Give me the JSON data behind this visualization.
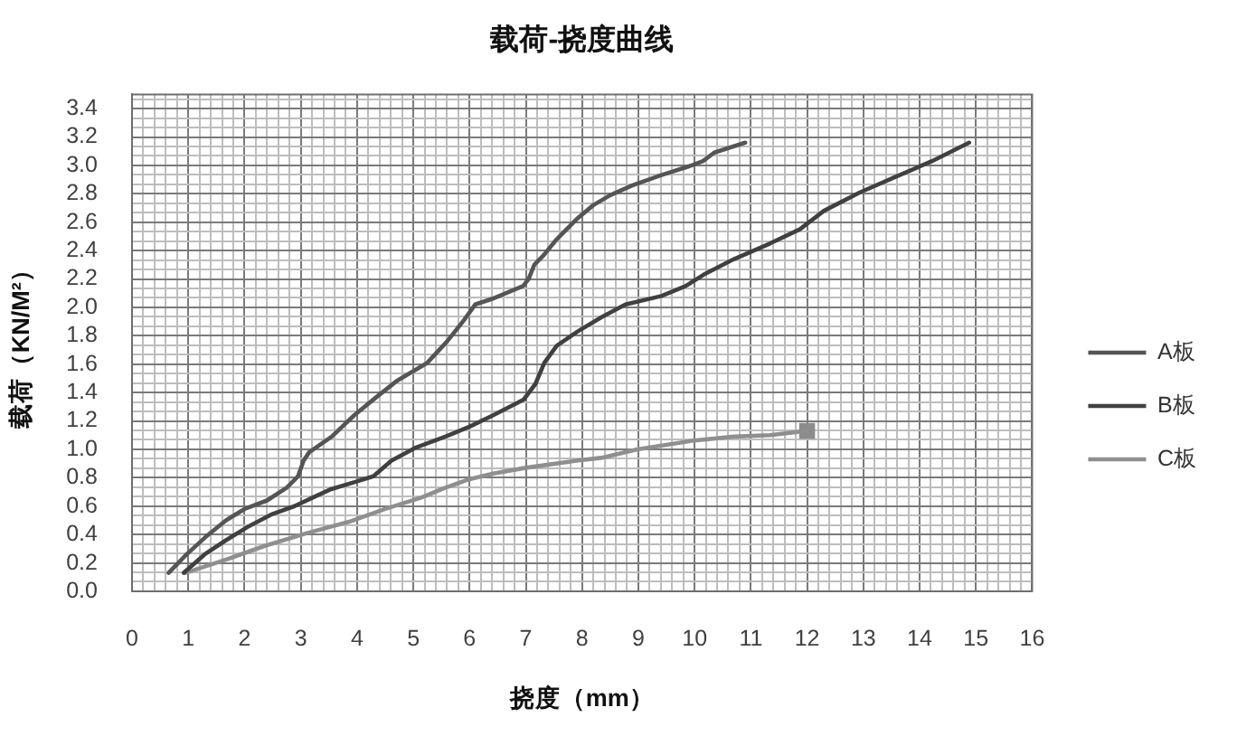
{
  "chart_data": {
    "type": "line",
    "title": "载荷-挠度曲线",
    "xlabel": "挠度（mm）",
    "ylabel": "载荷（KN/M²）",
    "series": [
      {
        "name": "A板",
        "color": "#555555",
        "x": [
          0.65,
          0.97,
          1.3,
          1.67,
          2.0,
          2.4,
          2.75,
          2.95,
          3.05,
          3.15,
          3.55,
          3.95,
          4.35,
          4.7,
          5.25,
          5.6,
          5.9,
          6.1,
          6.4,
          6.95,
          7.05,
          7.15,
          7.3,
          7.55,
          7.9,
          8.2,
          8.5,
          8.9,
          9.4,
          9.95,
          10.15,
          10.35,
          10.9
        ],
        "values": [
          0.13,
          0.26,
          0.38,
          0.5,
          0.58,
          0.64,
          0.73,
          0.81,
          0.92,
          0.98,
          1.09,
          1.24,
          1.37,
          1.48,
          1.61,
          1.76,
          1.91,
          2.02,
          2.06,
          2.15,
          2.2,
          2.3,
          2.36,
          2.48,
          2.62,
          2.72,
          2.79,
          2.86,
          2.93,
          3.0,
          3.03,
          3.09,
          3.16
        ]
      },
      {
        "name": "B板",
        "color": "#404040",
        "x": [
          0.92,
          1.29,
          1.67,
          2.04,
          2.47,
          2.89,
          3.21,
          3.54,
          3.96,
          4.29,
          4.61,
          5.03,
          5.57,
          6.0,
          6.42,
          6.96,
          7.17,
          7.33,
          7.55,
          7.92,
          8.34,
          8.77,
          9.41,
          9.84,
          10.16,
          10.7,
          11.34,
          11.87,
          12.3,
          12.94,
          13.58,
          14.22,
          14.88
        ],
        "values": [
          0.13,
          0.26,
          0.36,
          0.45,
          0.54,
          0.6,
          0.66,
          0.72,
          0.77,
          0.81,
          0.92,
          1.01,
          1.09,
          1.16,
          1.24,
          1.35,
          1.46,
          1.61,
          1.73,
          1.83,
          1.93,
          2.02,
          2.08,
          2.15,
          2.23,
          2.34,
          2.45,
          2.55,
          2.68,
          2.81,
          2.92,
          3.03,
          3.16
        ]
      },
      {
        "name": "C板",
        "color": "#8f8f8f",
        "x": [
          0.95,
          1.72,
          2.36,
          3.11,
          3.86,
          4.5,
          5.14,
          5.57,
          6.0,
          6.42,
          7.0,
          7.9,
          8.34,
          8.98,
          9.95,
          10.7,
          11.34,
          12.0
        ],
        "values": [
          0.13,
          0.23,
          0.32,
          0.41,
          0.49,
          0.58,
          0.66,
          0.73,
          0.79,
          0.83,
          0.87,
          0.92,
          0.94,
          1.0,
          1.06,
          1.09,
          1.1,
          1.13
        ]
      },
      {
        "type": "scatter",
        "color": "#8c8c8c",
        "marker": "square",
        "x": [
          12.0
        ],
        "values": [
          1.13
        ]
      }
    ],
    "xlim": [
      0,
      16
    ],
    "xticks": [
      0,
      {
        "value": 0.2,
        "label": null
      },
      {
        "value": 0.4,
        "label": null
      },
      {
        "value": 0.6,
        "label": null
      },
      {
        "value": 0.8,
        "label": null
      },
      1,
      {
        "value": 1.2,
        "label": null
      },
      {
        "value": 1.4,
        "label": null
      },
      {
        "value": 1.6,
        "label": null
      },
      {
        "value": 1.8,
        "label": null
      },
      2,
      {
        "value": 2.2,
        "label": null
      },
      {
        "value": 2.4,
        "label": null
      },
      {
        "value": 2.6,
        "label": null
      },
      {
        "value": 2.8,
        "label": null
      },
      3,
      {
        "value": 3.2,
        "label": null
      },
      {
        "value": 3.4,
        "label": null
      },
      {
        "value": 3.6,
        "label": null
      },
      {
        "value": 3.8,
        "label": null
      },
      4,
      {
        "value": 4.2,
        "label": null
      },
      {
        "value": 4.4,
        "label": null
      },
      {
        "value": 4.6,
        "label": null
      },
      {
        "value": 4.8,
        "label": null
      },
      5,
      {
        "value": 5.2,
        "label": null
      },
      {
        "value": 5.4,
        "label": null
      },
      {
        "value": 5.6,
        "label": null
      },
      {
        "value": 5.8,
        "label": null
      },
      6,
      {
        "value": 6.2,
        "label": null
      },
      {
        "value": 6.4,
        "label": null
      },
      {
        "value": 6.6,
        "label": null
      },
      {
        "value": 6.8,
        "label": null
      },
      7,
      {
        "value": 7.2,
        "label": null
      },
      {
        "value": 7.4,
        "label": null
      },
      {
        "value": 7.6,
        "label": null
      },
      {
        "value": 7.8,
        "label": null
      },
      8,
      {
        "value": 8.2,
        "label": null
      },
      {
        "value": 8.4,
        "label": null
      },
      {
        "value": 8.6,
        "label": null
      },
      {
        "value": 8.8,
        "label": null
      },
      9,
      {
        "value": 9.2,
        "label": null
      },
      {
        "value": 9.4,
        "label": null
      },
      {
        "value": 9.6,
        "label": null
      },
      {
        "value": 9.8,
        "label": null
      },
      10,
      {
        "value": 10.2,
        "label": null
      },
      {
        "value": 10.4,
        "label": null
      },
      {
        "value": 10.6,
        "label": null
      },
      {
        "value": 10.8,
        "label": null
      },
      11,
      {
        "value": 11.2,
        "label": null
      },
      {
        "value": 11.4,
        "label": null
      },
      {
        "value": 11.6,
        "label": null
      },
      {
        "value": 11.8,
        "label": null
      },
      12,
      {
        "value": 12.2,
        "label": null
      },
      {
        "value": 12.4,
        "label": null
      },
      {
        "value": 12.6,
        "label": null
      },
      {
        "value": 12.8,
        "label": null
      },
      13,
      {
        "value": 13.2,
        "label": null
      },
      {
        "value": 13.4,
        "label": null
      },
      {
        "value": 13.6,
        "label": null
      },
      {
        "value": 13.8,
        "label": null
      },
      14,
      {
        "value": 14.2,
        "label": null
      },
      {
        "value": 14.4,
        "label": null
      },
      {
        "value": 14.6,
        "label": null
      },
      {
        "value": 14.8,
        "label": null
      },
      15,
      {
        "value": 15.2,
        "label": null
      },
      {
        "value": 15.4,
        "label": null
      },
      {
        "value": 15.6,
        "label": null
      },
      {
        "value": 15.8,
        "label": null
      },
      16
    ],
    "ylim": [
      0,
      3.5
    ],
    "yticks": [
      {
        "value": 0,
        "label": "0.0"
      },
      {
        "value": 0.067,
        "label": null
      },
      {
        "value": 0.133,
        "label": null
      },
      0.2,
      {
        "value": 0.267,
        "label": null
      },
      {
        "value": 0.333,
        "label": null
      },
      0.4,
      {
        "value": 0.467,
        "label": null
      },
      {
        "value": 0.533,
        "label": null
      },
      0.6,
      {
        "value": 0.667,
        "label": null
      },
      {
        "value": 0.733,
        "label": null
      },
      0.8,
      {
        "value": 0.867,
        "label": null
      },
      {
        "value": 0.933,
        "label": null
      },
      {
        "value": 1,
        "label": "1.0"
      },
      {
        "value": 1.067,
        "label": null
      },
      {
        "value": 1.133,
        "label": null
      },
      1.2,
      {
        "value": 1.267,
        "label": null
      },
      {
        "value": 1.333,
        "label": null
      },
      1.4,
      {
        "value": 1.467,
        "label": null
      },
      {
        "value": 1.533,
        "label": null
      },
      1.6,
      {
        "value": 1.667,
        "label": null
      },
      {
        "value": 1.733,
        "label": null
      },
      1.8,
      {
        "value": 1.867,
        "label": null
      },
      {
        "value": 1.933,
        "label": null
      },
      {
        "value": 2,
        "label": "2.0"
      },
      {
        "value": 2.067,
        "label": null
      },
      {
        "value": 2.133,
        "label": null
      },
      2.2,
      {
        "value": 2.267,
        "label": null
      },
      {
        "value": 2.333,
        "label": null
      },
      2.4,
      {
        "value": 2.467,
        "label": null
      },
      {
        "value": 2.533,
        "label": null
      },
      2.6,
      {
        "value": 2.667,
        "label": null
      },
      {
        "value": 2.733,
        "label": null
      },
      2.8,
      {
        "value": 2.867,
        "label": null
      },
      {
        "value": 2.933,
        "label": null
      },
      {
        "value": 3,
        "label": "3.0"
      },
      {
        "value": 3.067,
        "label": null
      },
      {
        "value": 3.133,
        "label": null
      },
      3.2,
      {
        "value": 3.267,
        "label": null
      },
      {
        "value": 3.333,
        "label": null
      },
      3.4,
      {
        "value": 3.467,
        "label": null
      }
    ],
    "grid": true,
    "legend": "right",
    "marker": "none"
  }
}
